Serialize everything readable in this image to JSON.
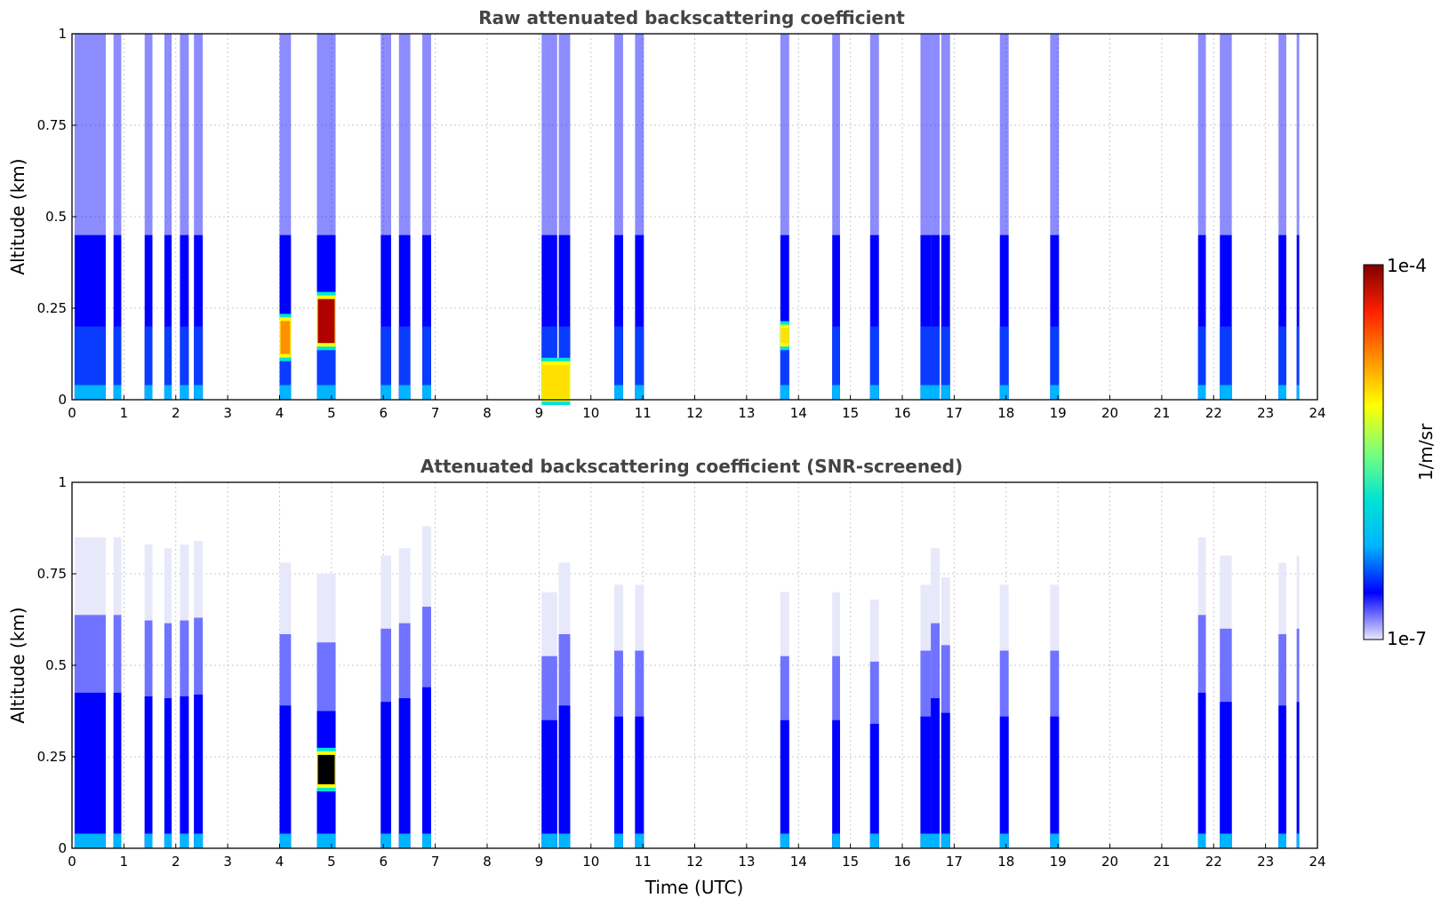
{
  "chart_data": [
    {
      "type": "heatmap",
      "title": "Raw attenuated backscattering coefficient",
      "xlabel": "",
      "ylabel": "Altitude (km)",
      "xlim": [
        0,
        24
      ],
      "ylim": [
        0,
        1
      ],
      "xticks": [
        "0",
        "1",
        "2",
        "3",
        "4",
        "5",
        "6",
        "7",
        "8",
        "9",
        "10",
        "11",
        "12",
        "13",
        "14",
        "15",
        "16",
        "17",
        "18",
        "19",
        "20",
        "21",
        "22",
        "23",
        "24"
      ],
      "yticks": [
        "0",
        "0.25",
        "0.5",
        "0.75",
        "1"
      ],
      "grid": true,
      "time_segments_utc": [
        [
          0.05,
          0.3
        ],
        [
          0.3,
          0.48
        ],
        [
          0.48,
          0.65
        ],
        [
          0.8,
          0.95
        ],
        [
          1.4,
          1.55
        ],
        [
          1.78,
          1.92
        ],
        [
          2.08,
          2.25
        ],
        [
          2.35,
          2.52
        ],
        [
          4.0,
          4.22
        ],
        [
          4.72,
          5.08
        ],
        [
          5.95,
          6.15
        ],
        [
          6.3,
          6.52
        ],
        [
          6.75,
          6.92
        ],
        [
          9.05,
          9.35
        ],
        [
          9.38,
          9.6
        ],
        [
          10.45,
          10.62
        ],
        [
          10.85,
          11.02
        ],
        [
          13.65,
          13.82
        ],
        [
          14.65,
          14.8
        ],
        [
          15.38,
          15.55
        ],
        [
          16.35,
          16.55
        ],
        [
          16.55,
          16.72
        ],
        [
          16.75,
          16.92
        ],
        [
          17.88,
          18.05
        ],
        [
          18.85,
          19.02
        ],
        [
          21.7,
          21.85
        ],
        [
          22.12,
          22.35
        ],
        [
          23.25,
          23.4
        ],
        [
          23.6,
          23.65
        ]
      ],
      "features": [
        {
          "time_utc": [
            4.0,
            4.22
          ],
          "altitude_km": [
            0.12,
            0.22
          ],
          "level": "high"
        },
        {
          "time_utc": [
            4.72,
            5.08
          ],
          "altitude_km": [
            0.15,
            0.28
          ],
          "level": "max"
        },
        {
          "time_utc": [
            9.05,
            9.6
          ],
          "altitude_km": [
            0.0,
            0.1
          ],
          "level": "moderate"
        },
        {
          "time_utc": [
            13.65,
            13.82
          ],
          "altitude_km": [
            0.15,
            0.2
          ],
          "level": "moderate"
        }
      ]
    },
    {
      "type": "heatmap",
      "title": "Attenuated backscattering coefficient (SNR-screened)",
      "xlabel": "Time (UTC)",
      "ylabel": "Altitude (km)",
      "xlim": [
        0,
        24
      ],
      "ylim": [
        0,
        1
      ],
      "xticks": [
        "0",
        "1",
        "2",
        "3",
        "4",
        "5",
        "6",
        "7",
        "8",
        "9",
        "10",
        "11",
        "12",
        "13",
        "14",
        "15",
        "16",
        "17",
        "18",
        "19",
        "20",
        "21",
        "22",
        "23",
        "24"
      ],
      "yticks": [
        "0",
        "0.25",
        "0.5",
        "0.75",
        "1"
      ],
      "grid": true,
      "screened_top_km": [
        0.85,
        0.85,
        0.85,
        0.85,
        0.83,
        0.82,
        0.83,
        0.84,
        0.78,
        0.75,
        0.8,
        0.82,
        0.88,
        0.7,
        0.78,
        0.72,
        0.72,
        0.7,
        0.7,
        0.68,
        0.72,
        0.82,
        0.74,
        0.72,
        0.72,
        0.85,
        0.8,
        0.78,
        0.8
      ],
      "features": [
        {
          "time_utc": [
            4.72,
            5.08
          ],
          "altitude_km": [
            0.17,
            0.26
          ],
          "level": "saturated"
        }
      ]
    }
  ],
  "colorbar": {
    "label": "1/m/sr",
    "max_label": "1e-4",
    "min_label": "1e-7",
    "colormap": [
      "#e8e8fb",
      "#0000ff",
      "#00b4ff",
      "#00e4d4",
      "#7cff7a",
      "#ffff00",
      "#ff9000",
      "#ff2000",
      "#800000"
    ]
  }
}
